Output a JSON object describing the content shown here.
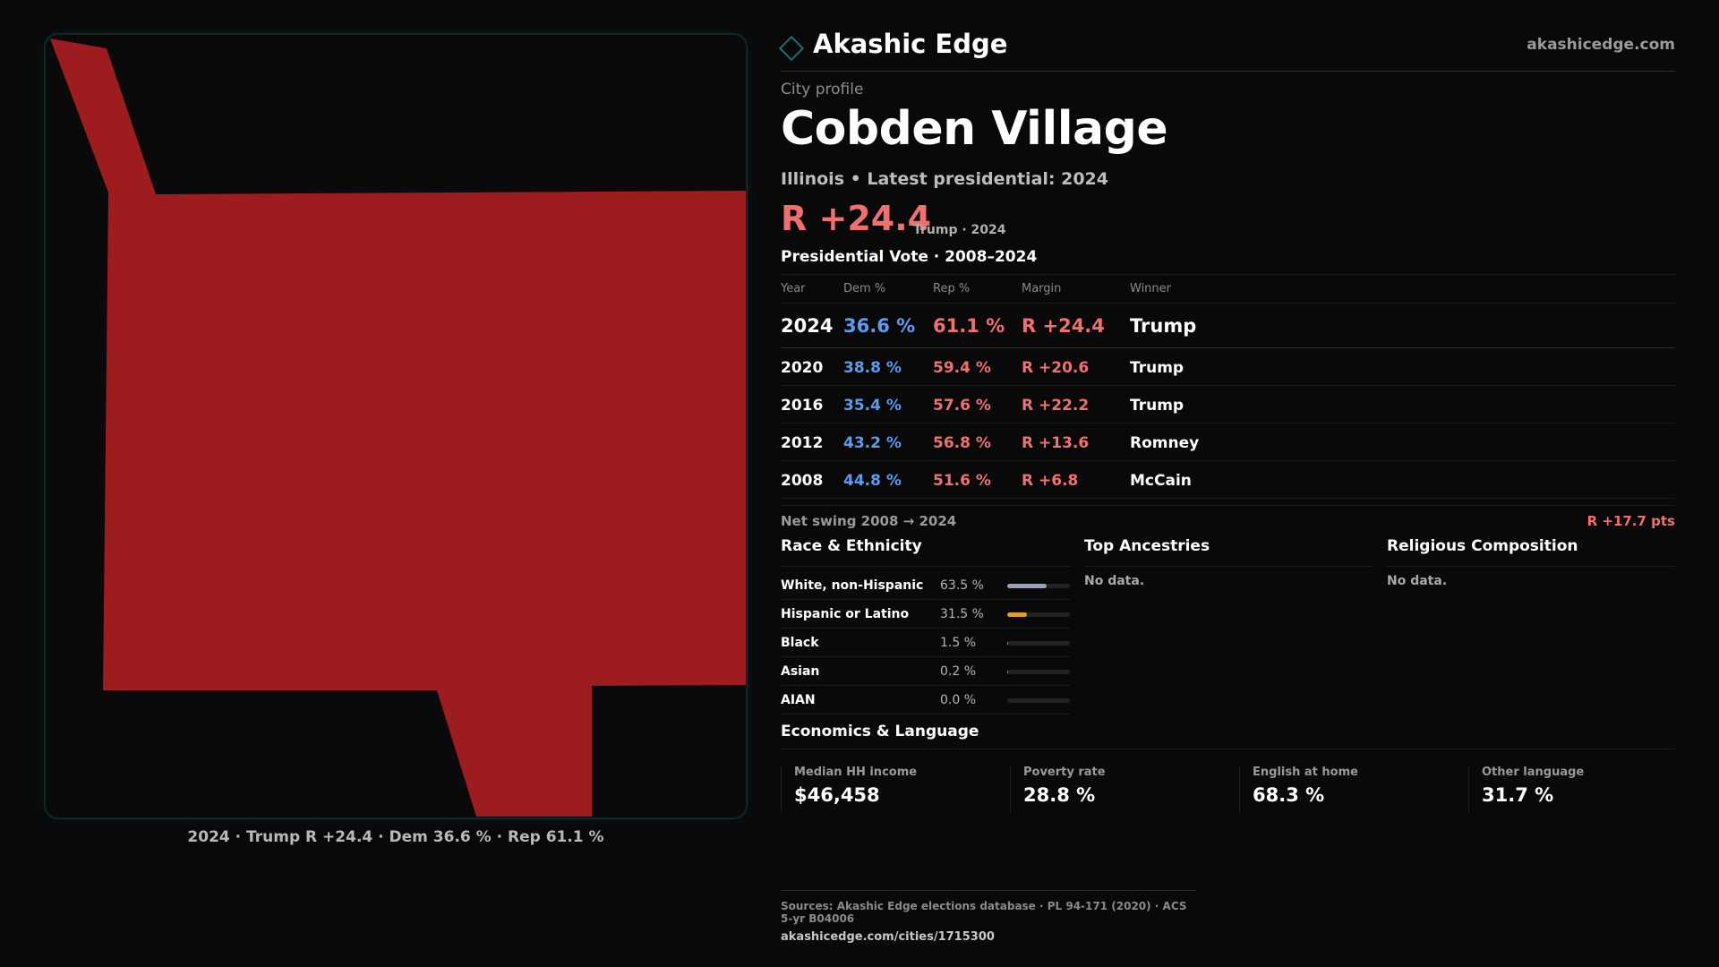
{
  "map": {
    "region_name": "Cobden Village",
    "fill_color": "#9c1c20",
    "caption": "2024 · Trump R +24.4 · Dem 36.6 % · Rep 61.1 %"
  },
  "brand": {
    "name": "Akashic Edge",
    "url": "akashicedge.com",
    "logo_icon": "diamond-outline-icon",
    "accent_color": "#1f6e76"
  },
  "profile": {
    "eyebrow": "City profile",
    "title": "Cobden Village",
    "subtitle": "Illinois • Latest presidential: 2024",
    "margin": "R +24.4",
    "margin_meta": "Trump · 2024"
  },
  "vote_table": {
    "title": "Presidential Vote · 2008–2024",
    "headers": {
      "year": "Year",
      "dem": "Dem %",
      "rep": "Rep %",
      "margin": "Margin",
      "winner": "Winner"
    },
    "rows": [
      {
        "year": "2024",
        "dem": "36.6 %",
        "rep": "61.1 %",
        "margin": "R +24.4",
        "winner": "Trump"
      },
      {
        "year": "2020",
        "dem": "38.8 %",
        "rep": "59.4 %",
        "margin": "R +20.6",
        "winner": "Trump"
      },
      {
        "year": "2016",
        "dem": "35.4 %",
        "rep": "57.6 %",
        "margin": "R +22.2",
        "winner": "Trump"
      },
      {
        "year": "2012",
        "dem": "43.2 %",
        "rep": "56.8 %",
        "margin": "R +13.6",
        "winner": "Romney"
      },
      {
        "year": "2008",
        "dem": "44.8 %",
        "rep": "51.6 %",
        "margin": "R +6.8",
        "winner": "McCain"
      }
    ],
    "dem_color": "#5b9bf0",
    "rep_color": "#f07070"
  },
  "swing": {
    "label": "Net swing 2008 → 2024",
    "value": "R +17.7 pts"
  },
  "race": {
    "title": "Race & Ethnicity",
    "rows": [
      {
        "label": "White, non-Hispanic",
        "pct": "63.5 %",
        "value": 0.635,
        "color": "#9aa4b4"
      },
      {
        "label": "Hispanic or Latino",
        "pct": "31.5 %",
        "value": 0.315,
        "color": "#e0a21f"
      },
      {
        "label": "Black",
        "pct": "1.5 %",
        "value": 0.015,
        "color": "#9aa4b4"
      },
      {
        "label": "Asian",
        "pct": "0.2 %",
        "value": 0.002,
        "color": "#9aa4b4"
      },
      {
        "label": "AIAN",
        "pct": "0.0 %",
        "value": 0.0,
        "color": "#9aa4b4"
      }
    ]
  },
  "ancestries": {
    "title": "Top Ancestries",
    "empty": "No data."
  },
  "religion": {
    "title": "Religious Composition",
    "empty": "No data."
  },
  "economics": {
    "title": "Economics & Language",
    "cells": [
      {
        "label": "Median HH income",
        "value": "$46,458"
      },
      {
        "label": "Poverty rate",
        "value": "28.8 %"
      },
      {
        "label": "English at home",
        "value": "68.3 %"
      },
      {
        "label": "Other language",
        "value": "31.7 %"
      }
    ]
  },
  "sources": {
    "line": "Sources: Akashic Edge elections database · PL 94-171 (2020) · ACS 5-yr B04006",
    "url": "akashicedge.com/cities/1715300"
  }
}
